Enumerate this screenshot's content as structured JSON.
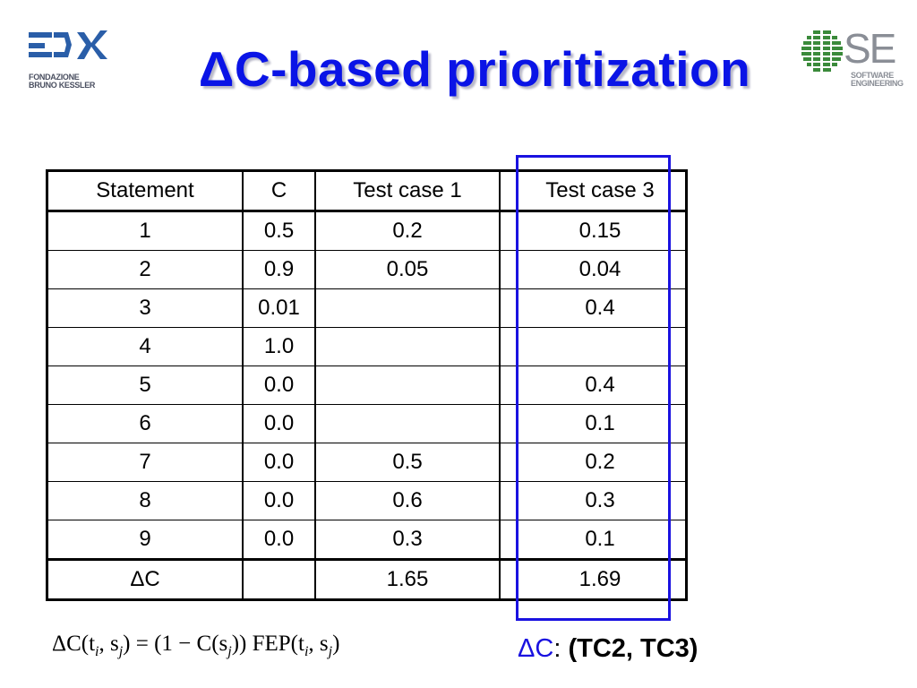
{
  "title": "ΔC-based prioritization",
  "logos": {
    "left": {
      "line1": "FONDAZIONE",
      "line2": "BRUNO KESSLER",
      "icon": "fbk-logo-icon",
      "color": "#2a5ea8"
    },
    "right": {
      "mark": "SE",
      "line1": "SOFTWARE",
      "line2": "ENGINEERING",
      "icon": "se-globe-icon",
      "color": "#3a8a3a"
    }
  },
  "table": {
    "headers": [
      "Statement",
      "C",
      "Test case 1",
      "",
      "Test case 3"
    ],
    "rows": [
      [
        "1",
        "0.5",
        "0.2",
        "",
        "0.15"
      ],
      [
        "2",
        "0.9",
        "0.05",
        "",
        "0.04"
      ],
      [
        "3",
        "0.01",
        "",
        "",
        "0.4"
      ],
      [
        "4",
        "1.0",
        "",
        "",
        ""
      ],
      [
        "5",
        "0.0",
        "",
        "",
        "0.4"
      ],
      [
        "6",
        "0.0",
        "",
        "",
        "0.1"
      ],
      [
        "7",
        "0.0",
        "0.5",
        "",
        "0.2"
      ],
      [
        "8",
        "0.0",
        "0.6",
        "",
        "0.3"
      ],
      [
        "9",
        "0.0",
        "0.3",
        "",
        "0.1"
      ]
    ],
    "total": [
      "ΔC",
      "",
      "1.65",
      "",
      "1.69"
    ]
  },
  "highlight_color": "#1a12e0",
  "formula": {
    "lhs": "ΔC(t",
    "sub_i": "i",
    "sep": ", s",
    "sub_j": "j",
    "mid": ") = (1 − C(s",
    "sub_j2": "j",
    "mid2": ")) FEP(t",
    "sub_i2": "i",
    "sep2": ", s",
    "sub_j3": "j",
    "end": ")"
  },
  "result": {
    "label": "ΔC",
    "colon": ": ",
    "pair": "(TC2, TC3)"
  }
}
